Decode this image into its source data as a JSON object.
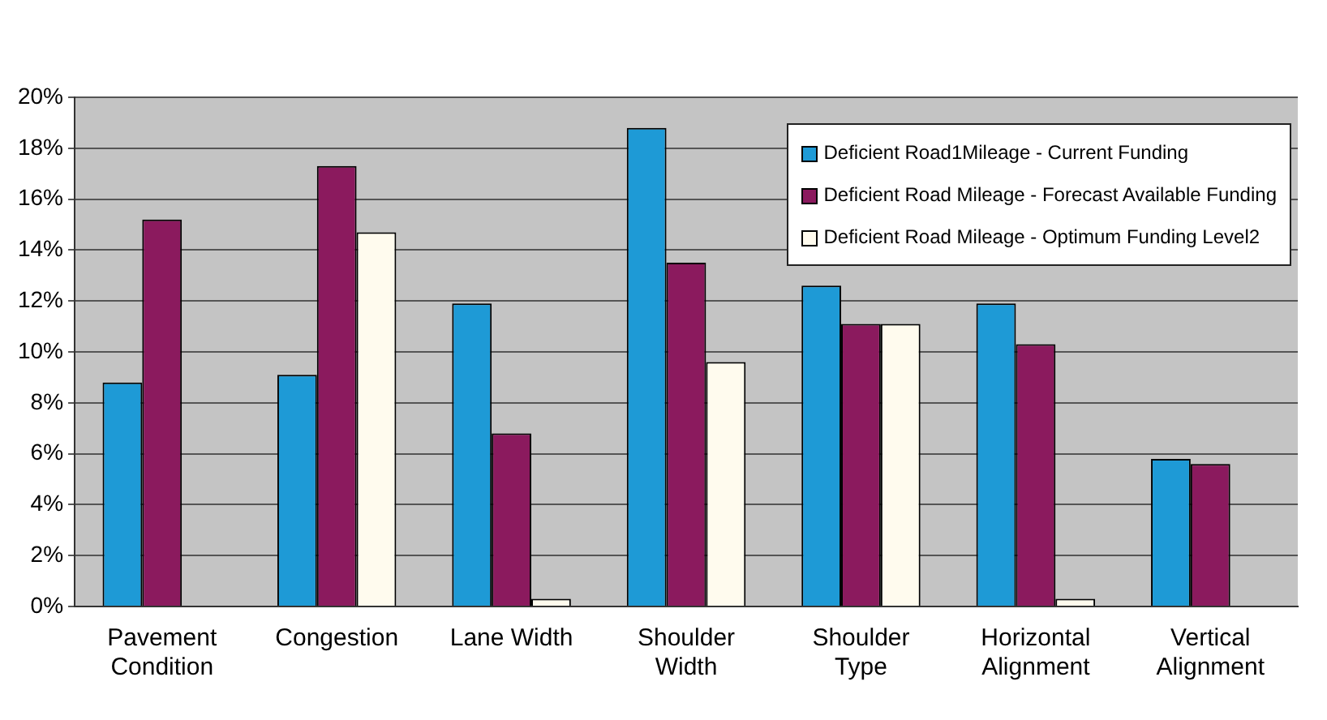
{
  "chart_data": {
    "type": "bar",
    "categories": [
      "Pavement\nCondition",
      "Congestion",
      "Lane Width",
      "Shoulder\nWidth",
      "Shoulder\nType",
      "Horizontal\nAlignment",
      "Vertical\nAlignment"
    ],
    "series": [
      {
        "name": "Deficient Road1Mileage - Current Funding",
        "color": "#1e9ad6",
        "values": [
          8.8,
          9.1,
          11.9,
          18.8,
          12.6,
          11.9,
          5.8
        ]
      },
      {
        "name": "Deficient Road Mileage - Forecast Available Funding",
        "color": "#8b1a5e",
        "values": [
          15.2,
          17.3,
          6.8,
          13.5,
          11.1,
          10.3,
          5.6
        ]
      },
      {
        "name": "Deficient Road Mileage - Optimum Funding Level2",
        "color": "#fffbee",
        "values": [
          null,
          14.7,
          0.3,
          9.6,
          11.1,
          0.3,
          null
        ]
      }
    ],
    "ylim": [
      0,
      20
    ],
    "yticks": [
      {
        "value": 0,
        "label": "0%"
      },
      {
        "value": 2,
        "label": "2%"
      },
      {
        "value": 4,
        "label": "4%"
      },
      {
        "value": 6,
        "label": "6%"
      },
      {
        "value": 8,
        "label": "8%"
      },
      {
        "value": 10,
        "label": "10%"
      },
      {
        "value": 12,
        "label": "12%"
      },
      {
        "value": 14,
        "label": "14%"
      },
      {
        "value": 16,
        "label": "16%"
      },
      {
        "value": 18,
        "label": "18%"
      },
      {
        "value": 20,
        "label": "20%"
      }
    ],
    "grid": "y",
    "legend": "top right"
  }
}
